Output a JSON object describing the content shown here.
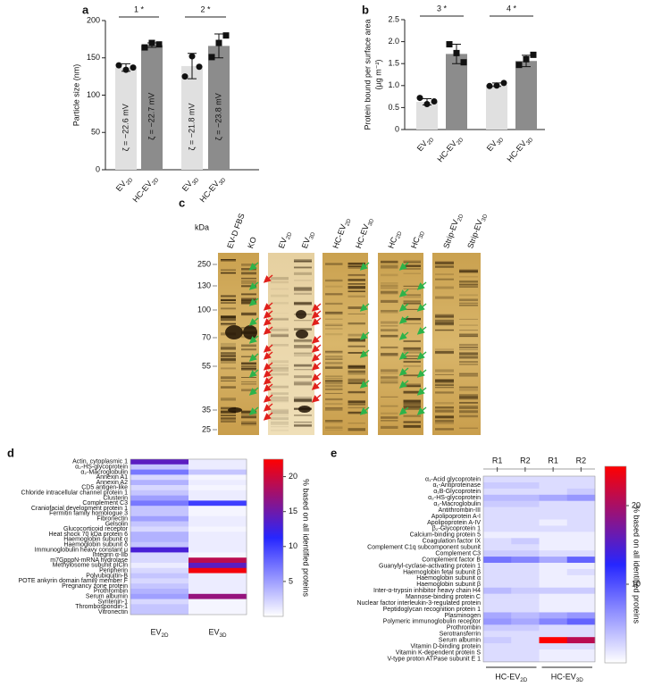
{
  "chart_data": [
    {
      "type": "bar",
      "panel": "a",
      "ylabel": "Particle size (nm)",
      "categories": [
        "EV2D",
        "HC-EV2D",
        "EV3D",
        "HC-EV3D"
      ],
      "values": [
        137,
        167,
        139,
        166
      ],
      "errors": [
        5,
        3,
        17,
        16
      ],
      "points": [
        [
          140,
          134,
          137
        ],
        [
          164,
          170,
          168
        ],
        [
          125,
          152,
          138
        ],
        [
          151,
          170,
          180
        ]
      ],
      "markers": [
        "circle",
        "square",
        "circle",
        "square"
      ],
      "colors": [
        "#e0e0e0",
        "#8c8c8c",
        "#e0e0e0",
        "#8c8c8c"
      ],
      "bar_labels": [
        "ζ = −22.6 mV",
        "ζ = −22.7 mV",
        "ζ = −21.8 mV",
        "ζ = −23.8 mV"
      ],
      "significance": [
        "1 *",
        "2 *"
      ],
      "ylim": [
        0,
        200
      ],
      "yticks": [
        0,
        50,
        100,
        150,
        200
      ]
    },
    {
      "type": "bar",
      "panel": "b",
      "ylabel": [
        "Protein bound per surface area",
        "(µg m⁻²)"
      ],
      "categories": [
        "EV2D",
        "HC-EV2D",
        "EV3D",
        "HC-EV3D"
      ],
      "values": [
        0.63,
        1.72,
        1.02,
        1.56
      ],
      "errors": [
        0.07,
        0.22,
        0.04,
        0.13
      ],
      "points": [
        [
          0.72,
          0.58,
          0.64
        ],
        [
          1.94,
          1.74,
          1.53
        ],
        [
          0.99,
          1.0,
          1.06
        ],
        [
          1.47,
          1.6,
          1.7
        ]
      ],
      "markers": [
        "circle",
        "square",
        "circle",
        "square"
      ],
      "colors": [
        "#e0e0e0",
        "#8c8c8c",
        "#e0e0e0",
        "#8c8c8c"
      ],
      "significance": [
        "3 *",
        "4 *"
      ],
      "ylim": [
        0,
        2.5
      ],
      "yticks": [
        0,
        0.5,
        {
          "value": 1,
          "label": "1.0"
        },
        1.5,
        {
          "value": 2,
          "label": "2.0"
        },
        2.5
      ]
    },
    {
      "type": "heatmap",
      "panel": "d",
      "rows": [
        "Actin, cytoplasmic 1",
        "α₂-HS-glycoprotein",
        "α₂-Macroglobulin",
        "Annexin A1",
        "Annexin A2",
        "CD5 antigen-like",
        "Chloride intracellular channel protein 1",
        "Clusterin",
        "Complement C3",
        "Craniofacial development protein 1",
        "Fermitin family homologue 3",
        "Fibronectin",
        "Gelsolin",
        "Glucocorticoid receptor",
        "Heat shock 70 kDa protein 6",
        "Haemoglobin subunit α",
        "Haemoglobin subunit δ",
        "Immunoglobulin heavy constant μ",
        "Integrin α-IIb",
        "m7GpppN-mRNA hydrolase",
        "Methylosome subunit pICln",
        "Peripherin",
        "Polyubiquitin-B",
        "POTE ankyrin domain family member F",
        "Pregnancy zone protein",
        "Prothrombin",
        "Serum albumin",
        "Syntenin-1",
        "Thrombospondin-1",
        "Vitronectin"
      ],
      "columns": [
        "EV2D",
        "EV3D"
      ],
      "values": [
        [
          14,
          1
        ],
        [
          3,
          1
        ],
        [
          7,
          3
        ],
        [
          2,
          0.5
        ],
        [
          4,
          1
        ],
        [
          2,
          0.5
        ],
        [
          3,
          1
        ],
        [
          5,
          1
        ],
        [
          7,
          10
        ],
        [
          3,
          0.5
        ],
        [
          3,
          0.5
        ],
        [
          5,
          1
        ],
        [
          3,
          1
        ],
        [
          2,
          0.5
        ],
        [
          4,
          1
        ],
        [
          4,
          1
        ],
        [
          3,
          1
        ],
        [
          13,
          1
        ],
        [
          2,
          0.5
        ],
        [
          2,
          19
        ],
        [
          1,
          14
        ],
        [
          2,
          22
        ],
        [
          3,
          1
        ],
        [
          2,
          1
        ],
        [
          3,
          1
        ],
        [
          4,
          1
        ],
        [
          5,
          17
        ],
        [
          2,
          0.5
        ],
        [
          3,
          0.5
        ],
        [
          3,
          0.5
        ]
      ],
      "colorbar_label": "% based on all identified proteins",
      "clim": [
        0,
        22.5
      ],
      "cticks": [
        5,
        10,
        15,
        20
      ],
      "colorscale": [
        "#ffffff",
        "#2626ff",
        "#ff0000"
      ]
    },
    {
      "type": "heatmap",
      "panel": "e",
      "rows": [
        "α₁-Acid glycoprotein",
        "α₁-Antiproteinase",
        "α₁B-Glycoprotein",
        "α₂-HS-glycoprotein",
        "α₂-Macroglobulin",
        "Antithrombin-III",
        "Apolipoprotein A-I",
        "Apolipoprotein A-IV",
        "β₂-Glycoprotein 1",
        "Calcium-binding protein 5",
        "Coagulation factor IX",
        "Complement C1q subcomponent subunit",
        "Complement C3",
        "Complement factor B",
        "Guanylyl-cyclase-activating protein 1",
        "Haemoglobin fetal subunit β",
        "Haemoglobin subunit α",
        "Haemoglobin subunit β",
        "Inter-α-trypsin inhibitor heavy chain H4",
        "Mannose-binding protein C",
        "Nuclear factor interleukin-3-regulated protein",
        "Peptidoglycan recognition protein 1",
        "Plasminogen",
        "Polymeric immunoglobulin receptor",
        "Prothrombin",
        "Serotransferrin",
        "Serum albumin",
        "Vitamin D-binding protein",
        "Vitamin K-dependent protein S",
        "V-type proton ATPase subunit E 1"
      ],
      "columns": [
        "R1",
        "R2",
        "R1",
        "R2"
      ],
      "column_groups": [
        "HC-EV2D",
        "HC-EV3D"
      ],
      "values": [
        [
          2,
          2,
          2,
          2
        ],
        [
          3,
          3,
          2,
          2
        ],
        [
          2,
          2,
          2,
          3
        ],
        [
          4,
          4,
          5,
          6
        ],
        [
          3,
          3,
          2,
          2
        ],
        [
          2,
          2,
          2,
          2
        ],
        [
          2,
          2,
          2,
          2
        ],
        [
          2,
          2,
          1,
          2
        ],
        [
          2,
          2,
          2,
          2
        ],
        [
          1,
          1,
          1,
          1
        ],
        [
          2,
          3,
          1,
          1
        ],
        [
          2,
          2,
          1,
          1
        ],
        [
          3,
          3,
          2,
          2
        ],
        [
          8,
          7,
          5,
          9
        ],
        [
          2,
          2,
          1,
          1
        ],
        [
          2,
          2,
          1,
          2
        ],
        [
          2,
          2,
          1,
          1
        ],
        [
          2,
          2,
          1,
          1
        ],
        [
          4,
          3,
          3,
          3
        ],
        [
          2,
          2,
          1,
          1
        ],
        [
          2,
          2,
          1,
          1
        ],
        [
          2,
          2,
          1,
          1
        ],
        [
          5,
          4,
          5,
          6
        ],
        [
          6,
          5,
          7,
          9
        ],
        [
          3,
          3,
          2,
          2
        ],
        [
          2,
          2,
          2,
          2
        ],
        [
          3,
          2,
          25,
          21
        ],
        [
          2,
          2,
          2,
          2
        ],
        [
          2,
          2,
          1,
          1
        ],
        [
          2,
          2,
          1,
          1
        ]
      ],
      "colorbar_label": "% based on all identified proteins",
      "clim": [
        0,
        25
      ],
      "cticks": [
        10,
        20
      ],
      "colorscale": [
        "#ffffff",
        "#2626ff",
        "#ff0000"
      ]
    }
  ],
  "gel": {
    "panel": "c",
    "unit": "kDa",
    "markers": [
      250,
      130,
      100,
      70,
      55,
      35,
      25
    ],
    "lanes": [
      "EV-D FBS",
      "KO",
      "EV2D",
      "EV3D",
      "HC-EV2D",
      "HC-EV3D",
      "HC2D",
      "HC3D",
      "Strip-EV2D",
      "Strip-EV3D"
    ]
  }
}
